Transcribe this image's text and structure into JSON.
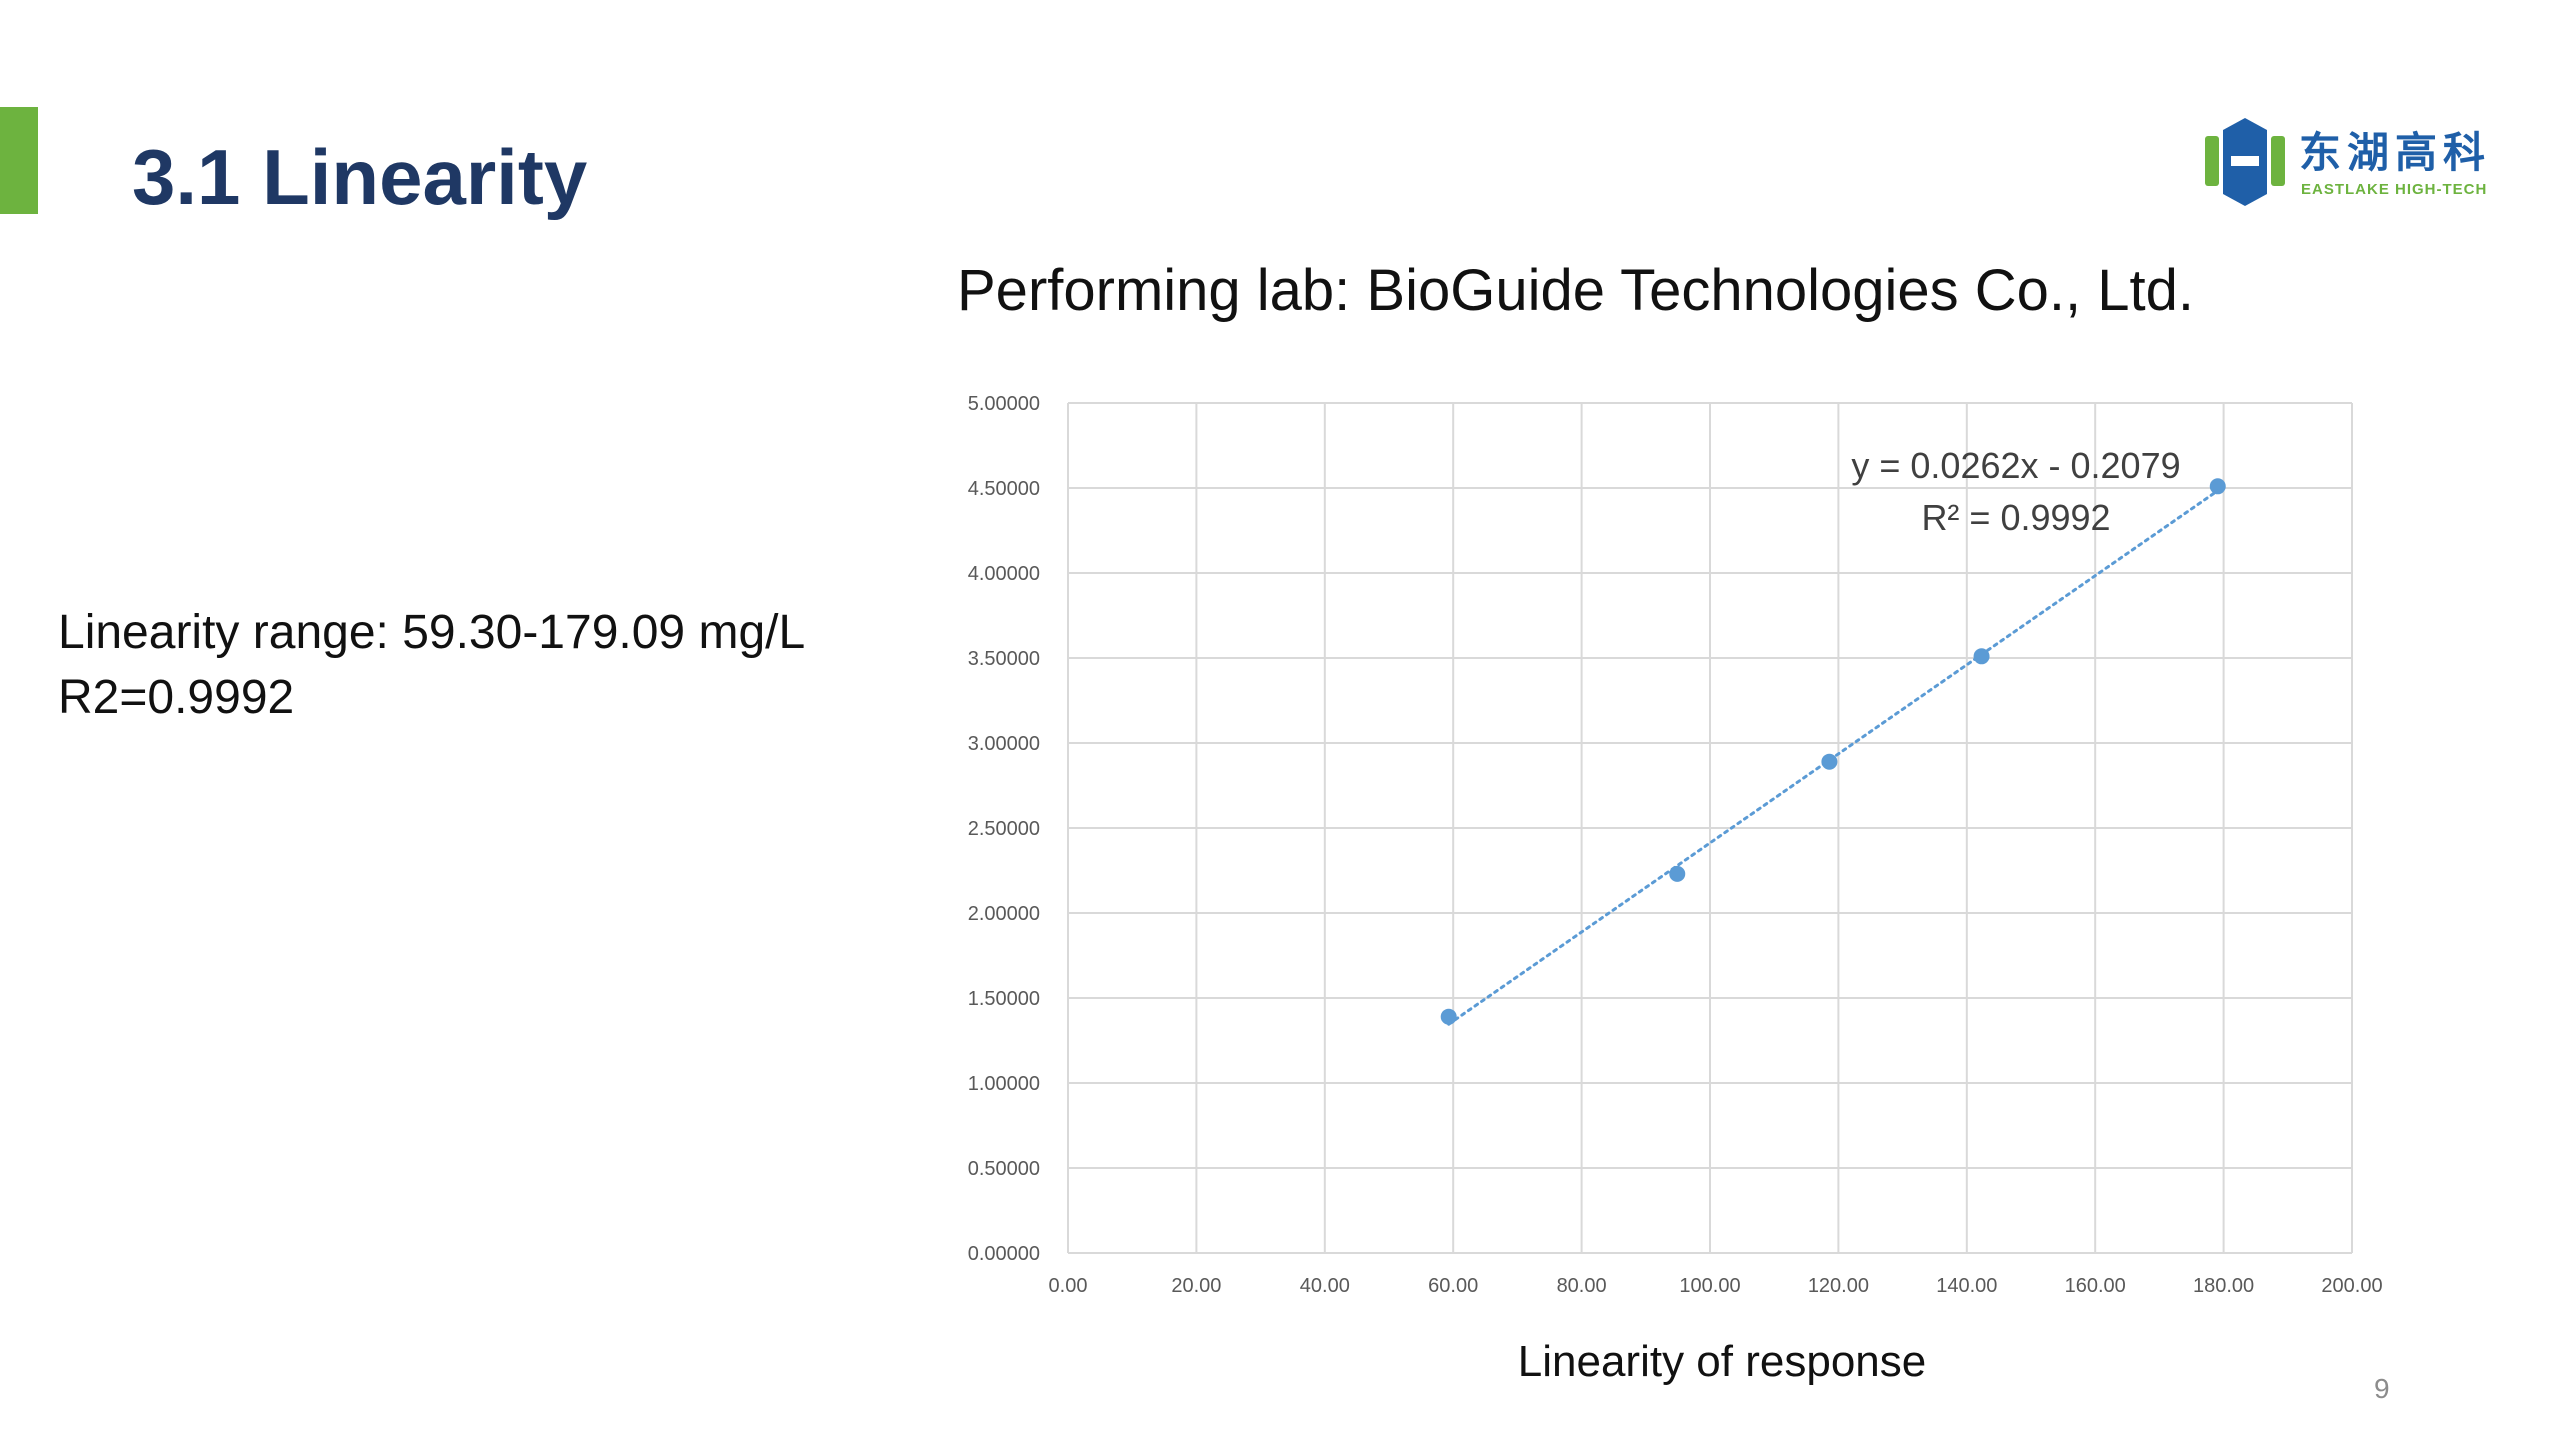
{
  "slide": {
    "title": "3.1 Linearity",
    "page_number": "9",
    "accent_color": "#6db33f",
    "title_color": "#1f3864"
  },
  "logo": {
    "name_cn": "东湖高科",
    "name_en": "EASTLAKE HIGH-TECH",
    "primary_color": "#1f5fa8",
    "secondary_color": "#6db33f"
  },
  "left_text": {
    "line1": "Linearity range: 59.30-179.09 mg/L",
    "line2": "R2=0.9992"
  },
  "chart_data": {
    "type": "scatter",
    "heading": "Performing lab: BioGuide Technologies Co., Ltd.",
    "title": "",
    "xlabel": "Linearity of response",
    "ylabel": "",
    "xlim": [
      0,
      200
    ],
    "ylim": [
      0,
      5
    ],
    "x_ticks": [
      "0.00",
      "20.00",
      "40.00",
      "60.00",
      "80.00",
      "100.00",
      "120.00",
      "140.00",
      "160.00",
      "180.00",
      "200.00"
    ],
    "y_ticks": [
      "0.00000",
      "0.50000",
      "1.00000",
      "1.50000",
      "2.00000",
      "2.50000",
      "3.00000",
      "3.50000",
      "4.00000",
      "4.50000",
      "5.00000"
    ],
    "grid": true,
    "legend": "none",
    "series": [
      {
        "color": "#5b9bd5",
        "points": [
          {
            "x": 59.3,
            "y": 1.39
          },
          {
            "x": 94.9,
            "y": 2.23
          },
          {
            "x": 118.6,
            "y": 2.89
          },
          {
            "x": 142.3,
            "y": 3.51
          },
          {
            "x": 179.09,
            "y": 4.51
          }
        ]
      }
    ],
    "trendline": {
      "type": "linear",
      "style": "dotted",
      "slope": 0.0262,
      "intercept": -0.2079,
      "x_range": [
        59.3,
        179.09
      ],
      "equation": "y = 0.0262x - 0.2079",
      "r2_label": "R² = 0.9992"
    }
  }
}
